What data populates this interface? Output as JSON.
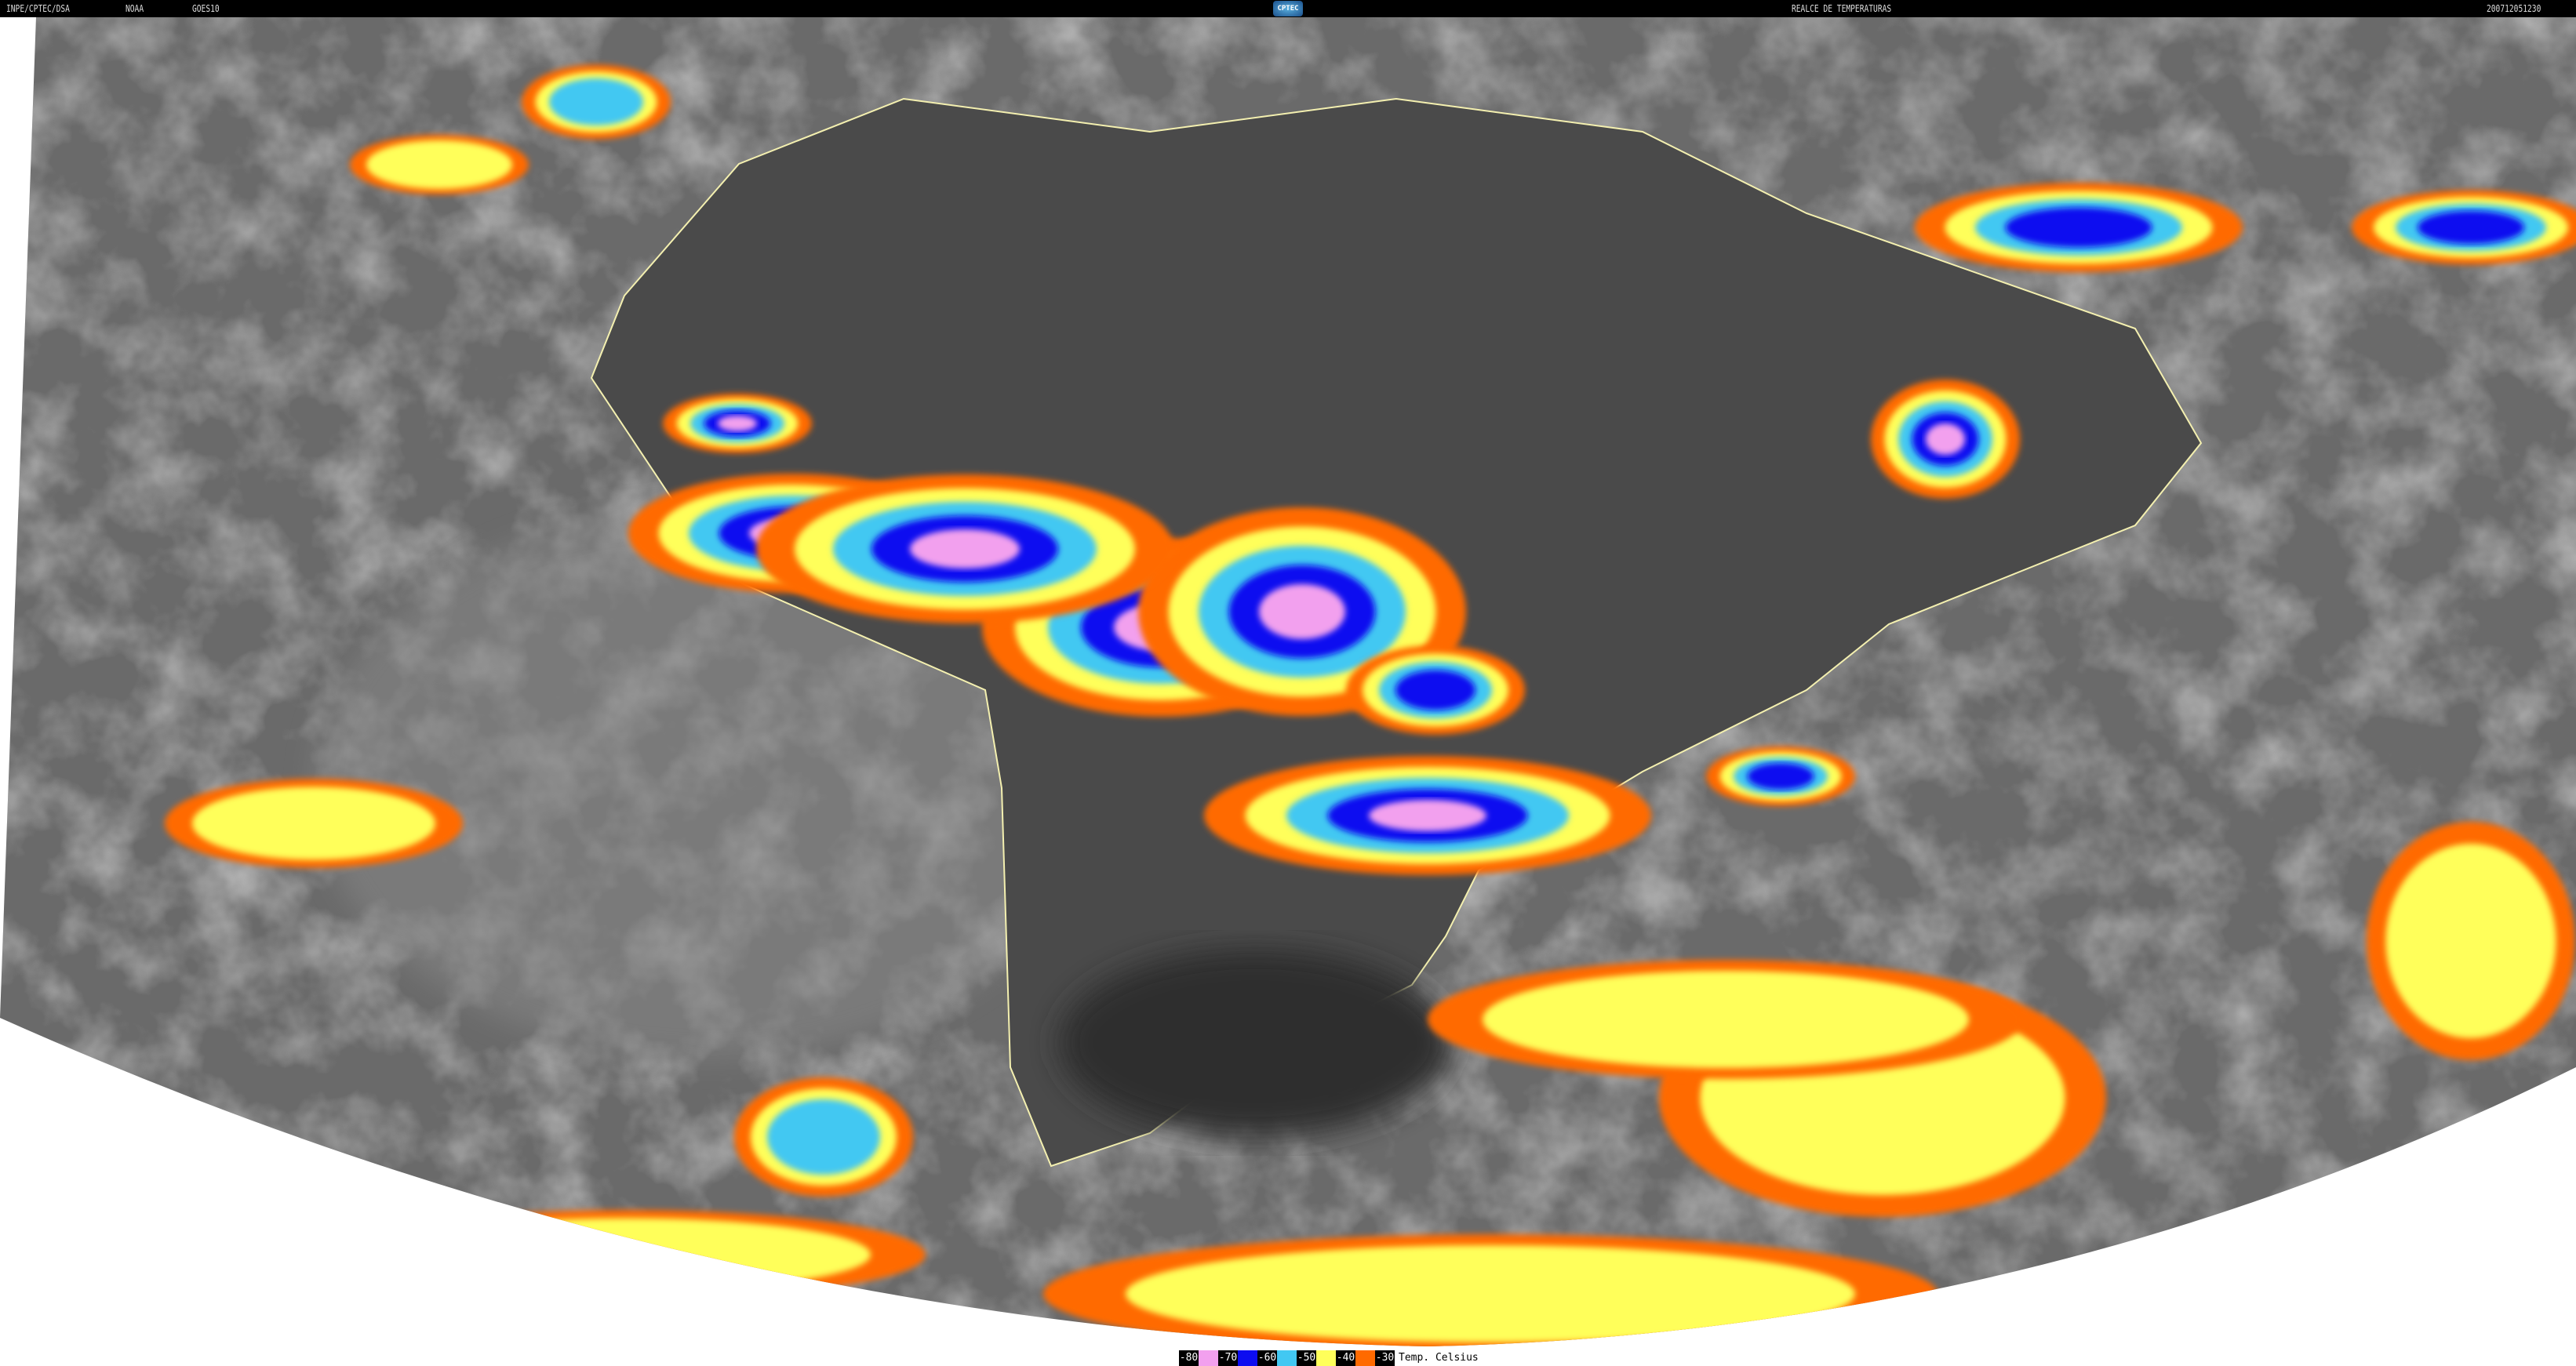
{
  "header": {
    "institution": "INPE/CPTEC/DSA",
    "agency": "NOAA",
    "satellite": "GOES10",
    "logo_text": "CPTEC",
    "product": "REALCE DE TEMPERATURAS",
    "timestamp": "200712051230"
  },
  "legend": {
    "title": "Temp. Celsius",
    "items": [
      {
        "label": "-80",
        "color": "#f2a0ee"
      },
      {
        "label": "-70",
        "color": "#0c0cf0"
      },
      {
        "label": "-60",
        "color": "#42c8f2"
      },
      {
        "label": "-50",
        "color": "#ffff5a"
      },
      {
        "label": "-40",
        "color": "#ff6a00"
      },
      {
        "label": "-30",
        "color": null
      }
    ]
  },
  "colors": {
    "background_cloud": "#6e6e6e",
    "coastline": "#f4f0b0"
  }
}
